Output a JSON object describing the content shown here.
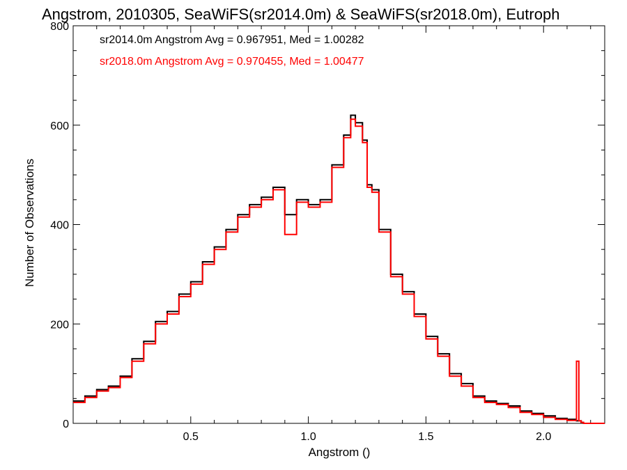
{
  "chart_data": {
    "type": "line",
    "title": "Angstrom, 2010305, SeaWiFS(sr2014.0m) & SeaWiFS(sr2018.0m), Eutroph",
    "xlabel": "Angstrom ()",
    "ylabel": "Number of Observations",
    "xlim": [
      0.0,
      2.26
    ],
    "ylim": [
      0,
      800
    ],
    "xticks": [
      0.5,
      1.0,
      1.5,
      2.0
    ],
    "xtick_labels": [
      "0.5",
      "1.0",
      "1.5",
      "2.0"
    ],
    "yticks": [
      0,
      200,
      400,
      600,
      800
    ],
    "ytick_labels": [
      "0",
      "200",
      "400",
      "600",
      "800"
    ],
    "grid": false,
    "legend_placement": "top-left",
    "series": [
      {
        "name": "sr2014.0m",
        "legend_text": "sr2014.0m Angstrom Avg = 0.967951, Med = 1.00282",
        "color": "#000000",
        "step": true,
        "x": [
          0.0,
          0.05,
          0.1,
          0.15,
          0.2,
          0.25,
          0.3,
          0.35,
          0.4,
          0.45,
          0.5,
          0.55,
          0.6,
          0.65,
          0.7,
          0.75,
          0.8,
          0.85,
          0.9,
          0.95,
          1.0,
          1.05,
          1.1,
          1.15,
          1.18,
          1.2,
          1.23,
          1.25,
          1.27,
          1.3,
          1.35,
          1.4,
          1.45,
          1.5,
          1.55,
          1.6,
          1.65,
          1.7,
          1.75,
          1.8,
          1.85,
          1.9,
          1.95,
          2.0,
          2.05,
          2.1,
          2.14,
          2.15,
          2.16,
          2.17,
          2.26
        ],
        "y": [
          45,
          55,
          68,
          75,
          95,
          130,
          165,
          205,
          225,
          260,
          285,
          325,
          355,
          390,
          420,
          440,
          455,
          475,
          420,
          450,
          440,
          450,
          520,
          580,
          620,
          605,
          570,
          480,
          470,
          390,
          300,
          265,
          220,
          175,
          140,
          100,
          80,
          55,
          45,
          40,
          35,
          25,
          20,
          15,
          10,
          8,
          5,
          5,
          2,
          0,
          0
        ]
      },
      {
        "name": "sr2018.0m",
        "legend_text": "sr2018.0m Angstrom Avg = 0.970455, Med = 1.00477",
        "color": "#ff0000",
        "step": true,
        "x": [
          0.0,
          0.05,
          0.1,
          0.15,
          0.2,
          0.25,
          0.3,
          0.35,
          0.4,
          0.45,
          0.5,
          0.55,
          0.6,
          0.65,
          0.7,
          0.75,
          0.8,
          0.85,
          0.9,
          0.95,
          1.0,
          1.05,
          1.1,
          1.15,
          1.18,
          1.2,
          1.23,
          1.25,
          1.27,
          1.3,
          1.35,
          1.4,
          1.45,
          1.5,
          1.55,
          1.6,
          1.65,
          1.7,
          1.75,
          1.8,
          1.85,
          1.9,
          1.95,
          2.0,
          2.05,
          2.1,
          2.14,
          2.15,
          2.16,
          2.17,
          2.26
        ],
        "y": [
          42,
          52,
          65,
          72,
          92,
          125,
          160,
          200,
          220,
          255,
          280,
          320,
          350,
          385,
          415,
          435,
          450,
          470,
          380,
          445,
          435,
          445,
          515,
          575,
          612,
          598,
          565,
          475,
          465,
          385,
          295,
          260,
          215,
          170,
          135,
          95,
          75,
          52,
          42,
          38,
          32,
          22,
          18,
          12,
          8,
          6,
          125,
          5,
          2,
          0,
          0
        ]
      }
    ]
  }
}
